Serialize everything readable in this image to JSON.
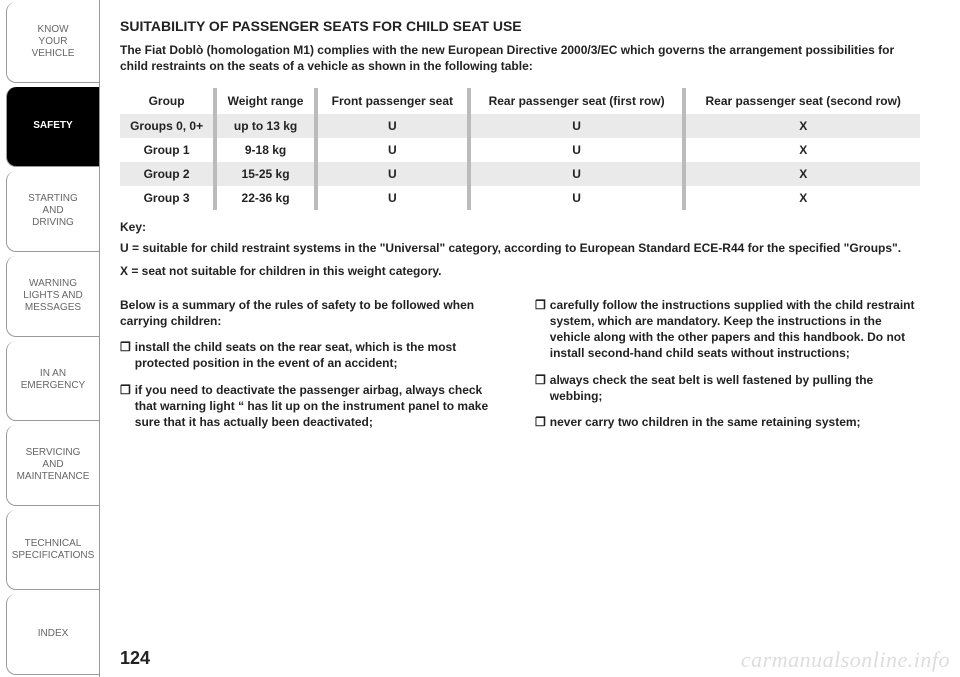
{
  "sidebar": {
    "tabs": [
      {
        "label": "KNOW\nYOUR\nVEHICLE",
        "active": false
      },
      {
        "label": "SAFETY",
        "active": true
      },
      {
        "label": "STARTING\nAND\nDRIVING",
        "active": false
      },
      {
        "label": "WARNING\nLIGHTS AND\nMESSAGES",
        "active": false
      },
      {
        "label": "IN AN\nEMERGENCY",
        "active": false
      },
      {
        "label": "SERVICING\nAND\nMAINTENANCE",
        "active": false
      },
      {
        "label": "TECHNICAL\nSPECIFICATIONS",
        "active": false
      },
      {
        "label": "INDEX",
        "active": false
      }
    ]
  },
  "heading": "SUITABILITY OF PASSENGER SEATS FOR CHILD SEAT USE",
  "intro": "The Fiat Doblò (homologation M1) complies with the new European Directive 2000/3/EC which governs the arrangement possibilities for child restraints on the seats of a vehicle as shown in the following table:",
  "table": {
    "headers": [
      "Group",
      "Weight range",
      "Front passenger seat",
      "Rear passenger seat (first row)",
      "Rear passenger seat (second row)"
    ],
    "rows": [
      {
        "cells": [
          "Groups 0, 0+",
          "up to 13 kg",
          "U",
          "U",
          "X"
        ],
        "shade": true
      },
      {
        "cells": [
          "Group 1",
          "9-18 kg",
          "U",
          "U",
          "X"
        ],
        "shade": false
      },
      {
        "cells": [
          "Group 2",
          "15-25 kg",
          "U",
          "U",
          "X"
        ],
        "shade": true
      },
      {
        "cells": [
          "Group 3",
          "22-36 kg",
          "U",
          "U",
          "X"
        ],
        "shade": false
      }
    ]
  },
  "key_label": "Key:",
  "key_u": "U = suitable for child restraint systems in the \"Universal\" category, according to European Standard ECE-R44 for the specified \"Groups\".",
  "key_x": "X = seat not suitable for children in this weight category.",
  "col_left": {
    "lead": "Below is a summary of the rules of safety to be followed when carrying children:",
    "items": [
      "install the child seats on the rear seat, which is the most protected position in the event of an accident;",
      "if you need to deactivate the passenger airbag, always check that warning light “ has lit up on the instrument panel to make sure that it has actually been deactivated;"
    ]
  },
  "col_right": {
    "items": [
      "carefully follow the instructions supplied with the child restraint system, which are mandatory. Keep the instructions in the vehicle along with the other papers and this handbook. Do not install second-hand child seats without instructions;",
      "always check the seat belt is well fastened by pulling the webbing;",
      "never carry two children in the same retaining system;"
    ]
  },
  "page_number": "124",
  "watermark": "carmanualsonline.info",
  "colors": {
    "shade_bg": "#eaeaea",
    "separator": "#bbbbbb",
    "tab_active_bg": "#000000",
    "tab_active_fg": "#ffffff",
    "tab_fg": "#666666",
    "watermark": "#dddddd"
  }
}
